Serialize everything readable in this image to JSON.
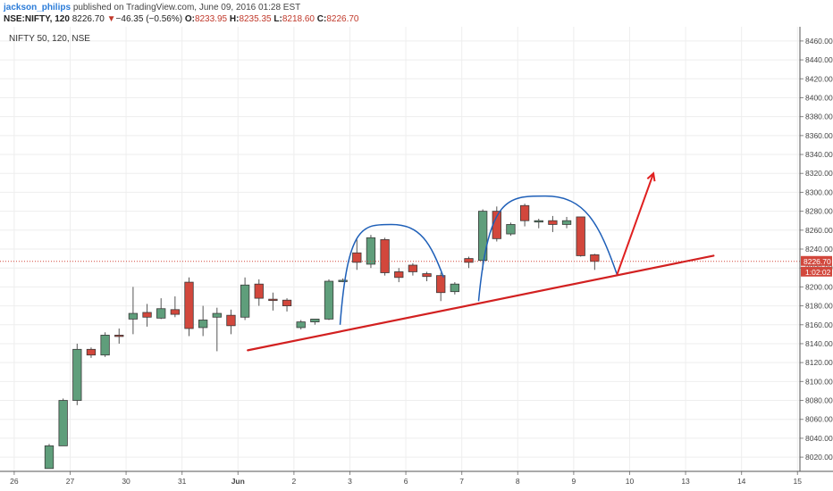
{
  "header": {
    "author": "jackson_philips",
    "published_text": "published on TradingView.com, June 09, 2016 01:28 EST",
    "symbol": "NSE:NIFTY, 120",
    "last": "8226.70",
    "change_arrow": "▼",
    "change": "−46.35 (−0.56%)",
    "open_label": "O:",
    "open": "8233.95",
    "high_label": "H:",
    "high": "8235.35",
    "low_label": "L:",
    "low": "8218.60",
    "close_label": "C:",
    "close": "8226.70"
  },
  "chart_data": {
    "type": "candlestick",
    "title": "NIFTY 50, 120, NSE",
    "ylim": [
      8005,
      8475
    ],
    "y_ticks": [
      8020,
      8040,
      8060,
      8080,
      8100,
      8120,
      8140,
      8160,
      8180,
      8200,
      8220,
      8240,
      8260,
      8280,
      8300,
      8320,
      8340,
      8360,
      8380,
      8400,
      8420,
      8440,
      8460
    ],
    "x_ticks": [
      {
        "label": "26",
        "x": -2.5
      },
      {
        "label": "27",
        "x": 1.5
      },
      {
        "label": "30",
        "x": 5.5
      },
      {
        "label": "31",
        "x": 9.5
      },
      {
        "label": "Jun",
        "x": 13.5
      },
      {
        "label": "2",
        "x": 17.5
      },
      {
        "label": "3",
        "x": 21.5
      },
      {
        "label": "6",
        "x": 25.5
      },
      {
        "label": "7",
        "x": 29.5
      },
      {
        "label": "8",
        "x": 33.5
      },
      {
        "label": "9",
        "x": 37.5
      },
      {
        "label": "10",
        "x": 41.5
      },
      {
        "label": "13",
        "x": 45.5
      },
      {
        "label": "14",
        "x": 49.5
      },
      {
        "label": "15",
        "x": 53.5
      }
    ],
    "candles": [
      {
        "o": 8008,
        "h": 8034,
        "l": 8008,
        "c": 8032
      },
      {
        "o": 8032,
        "h": 8082,
        "l": 8032,
        "c": 8080
      },
      {
        "o": 8080,
        "h": 8140,
        "l": 8075,
        "c": 8134
      },
      {
        "o": 8134,
        "h": 8136,
        "l": 8125,
        "c": 8128
      },
      {
        "o": 8128,
        "h": 8152,
        "l": 8126,
        "c": 8149
      },
      {
        "o": 8149,
        "h": 8156,
        "l": 8140,
        "c": 8148
      },
      {
        "o": 8166,
        "h": 8200,
        "l": 8150,
        "c": 8172
      },
      {
        "o": 8173,
        "h": 8182,
        "l": 8158,
        "c": 8168
      },
      {
        "o": 8167,
        "h": 8188,
        "l": 8166,
        "c": 8177
      },
      {
        "o": 8176,
        "h": 8190,
        "l": 8168,
        "c": 8171
      },
      {
        "o": 8205,
        "h": 8210,
        "l": 8148,
        "c": 8156
      },
      {
        "o": 8157,
        "h": 8180,
        "l": 8148,
        "c": 8165
      },
      {
        "o": 8168,
        "h": 8178,
        "l": 8132,
        "c": 8172
      },
      {
        "o": 8170,
        "h": 8176,
        "l": 8150,
        "c": 8159
      },
      {
        "o": 8168,
        "h": 8210,
        "l": 8165,
        "c": 8202
      },
      {
        "o": 8203,
        "h": 8208,
        "l": 8180,
        "c": 8188
      },
      {
        "o": 8187,
        "h": 8194,
        "l": 8175,
        "c": 8186
      },
      {
        "o": 8186,
        "h": 8188,
        "l": 8174,
        "c": 8180
      },
      {
        "o": 8157,
        "h": 8165,
        "l": 8155,
        "c": 8163
      },
      {
        "o": 8163,
        "h": 8166,
        "l": 8160,
        "c": 8166
      },
      {
        "o": 8166,
        "h": 8208,
        "l": 8165,
        "c": 8206
      },
      {
        "o": 8207,
        "h": 8209,
        "l": 8205,
        "c": 8207
      },
      {
        "o": 8236,
        "h": 8250,
        "l": 8218,
        "c": 8226
      },
      {
        "o": 8224,
        "h": 8255,
        "l": 8220,
        "c": 8252
      },
      {
        "o": 8250,
        "h": 8252,
        "l": 8212,
        "c": 8215
      },
      {
        "o": 8216,
        "h": 8220,
        "l": 8205,
        "c": 8210
      },
      {
        "o": 8223,
        "h": 8225,
        "l": 8212,
        "c": 8216
      },
      {
        "o": 8214,
        "h": 8216,
        "l": 8206,
        "c": 8211
      },
      {
        "o": 8212,
        "h": 8215,
        "l": 8185,
        "c": 8194
      },
      {
        "o": 8195,
        "h": 8205,
        "l": 8192,
        "c": 8203
      },
      {
        "o": 8230,
        "h": 8232,
        "l": 8220,
        "c": 8226
      },
      {
        "o": 8228,
        "h": 8282,
        "l": 8218,
        "c": 8280
      },
      {
        "o": 8280,
        "h": 8285,
        "l": 8248,
        "c": 8251
      },
      {
        "o": 8256,
        "h": 8268,
        "l": 8254,
        "c": 8266
      },
      {
        "o": 8286,
        "h": 8288,
        "l": 8264,
        "c": 8270
      },
      {
        "o": 8270,
        "h": 8272,
        "l": 8262,
        "c": 8270
      },
      {
        "o": 8270,
        "h": 8275,
        "l": 8258,
        "c": 8266
      },
      {
        "o": 8266,
        "h": 8274,
        "l": 8262,
        "c": 8270
      },
      {
        "o": 8274,
        "h": 8274,
        "l": 8232,
        "c": 8233
      },
      {
        "o": 8234,
        "h": 8235,
        "l": 8218,
        "c": 8227
      }
    ],
    "last_price_label": "8226.70",
    "countdown_label": "1:02:02",
    "colors": {
      "up": "#5f9e7b",
      "down": "#d2473c",
      "trendline": "#d22020",
      "pattern_arcs": "#1e5fb8",
      "arrow": "#e02020",
      "grid": "#eeeeee"
    },
    "drawings": {
      "trendline": [
        {
          "x": 14.2,
          "y": 8133
        },
        {
          "x": 47.5,
          "y": 8233
        }
      ],
      "arcs": [
        {
          "from": {
            "x": 20.8,
            "y": 8160
          },
          "peak": {
            "x": 24.5,
            "y": 8266
          },
          "to": {
            "x": 28.2,
            "y": 8210
          }
        },
        {
          "from": {
            "x": 30.7,
            "y": 8185
          },
          "peak": {
            "x": 35.5,
            "y": 8296
          },
          "to": {
            "x": 40.6,
            "y": 8213
          }
        }
      ],
      "arrow": {
        "from": {
          "x": 40.6,
          "y": 8213
        },
        "to": {
          "x": 43.2,
          "y": 8320
        }
      }
    }
  }
}
